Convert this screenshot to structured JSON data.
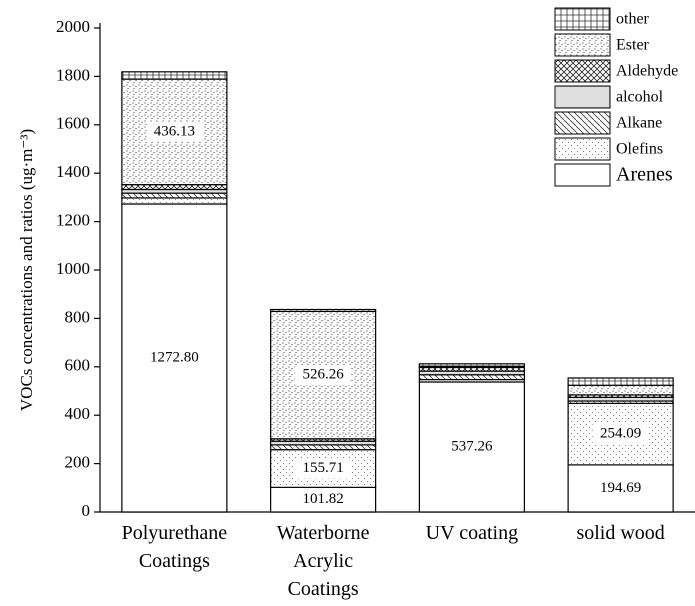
{
  "chart_data": {
    "type": "stacked_bar",
    "y_label": "VOCs concentrations and ratios (ug·m⁻³)",
    "categories": [
      "Polyurethane\nCoatings",
      "Waterborne\nAcrylic\nCoatings",
      "UV coating",
      "solid wood"
    ],
    "series": [
      {
        "name": "Arenes",
        "color": "#000000",
        "values": [
          1272.8,
          101.82,
          537.26,
          194.69
        ],
        "value_labels": [
          "1272.80",
          "101.82",
          "537.26",
          "194.69"
        ]
      },
      {
        "name": "Olefins",
        "color": "#555555",
        "values": [
          25,
          155.71,
          10,
          254.09
        ],
        "value_labels": [
          null,
          "155.71",
          null,
          "254.09"
        ]
      },
      {
        "name": "Alkane",
        "color": "#333333",
        "values": [
          20,
          20,
          20,
          10
        ]
      },
      {
        "name": "alcohol",
        "color": "#444444",
        "values": [
          15,
          15,
          15,
          15
        ]
      },
      {
        "name": "Aldehyde",
        "color": "#222222",
        "values": [
          20,
          10,
          15,
          10
        ]
      },
      {
        "name": "Ester",
        "color": "#444444",
        "values": [
          436.13,
          526.26,
          5,
          40
        ],
        "value_labels": [
          "436.13",
          "526.26",
          null,
          null
        ]
      },
      {
        "name": "other",
        "color": "#333333",
        "values": [
          30,
          8,
          10,
          30
        ]
      }
    ],
    "ylim": [
      0,
      2000
    ],
    "yticks": [
      0,
      200,
      400,
      600,
      800,
      1000,
      1200,
      1400,
      1600,
      1800,
      2000
    ],
    "legend": "upper right"
  }
}
